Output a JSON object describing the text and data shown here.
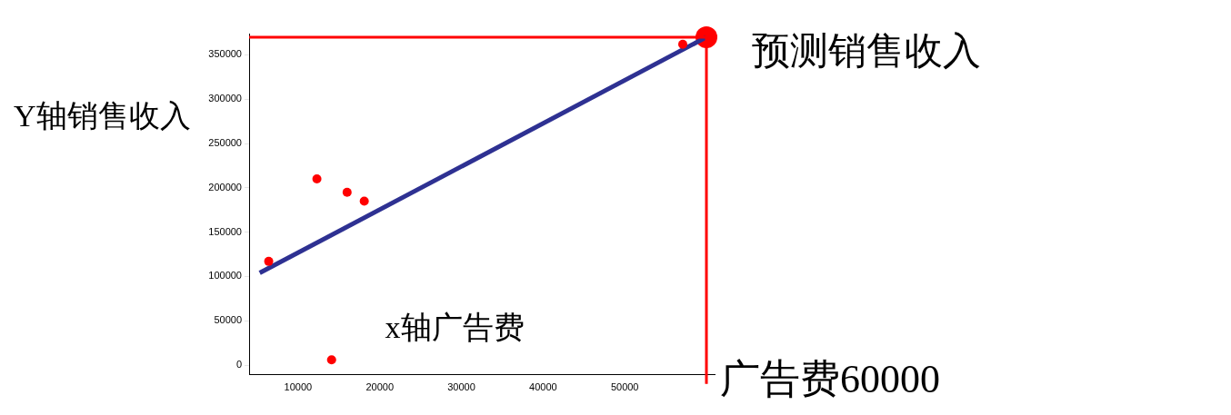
{
  "chart_data": {
    "type": "scatter",
    "xlabel": "x轴广告费",
    "ylabel": "Y轴销售收入",
    "xlim": [
      4000,
      61000
    ],
    "ylim": [
      -11000,
      374000
    ],
    "xticks": [
      10000,
      20000,
      30000,
      40000,
      50000
    ],
    "yticks": [
      0,
      50000,
      100000,
      150000,
      200000,
      250000,
      300000,
      350000
    ],
    "grid": false,
    "legend": false,
    "series": [
      {
        "color": "#ff0000",
        "marker": "circle",
        "x": [
          6400,
          12300,
          16000,
          18100,
          14100,
          57100
        ],
        "values": [
          117000,
          210000,
          195000,
          185000,
          6000,
          362000
        ]
      },
      {
        "type": "line",
        "marker": "none",
        "color": "#2e3192",
        "x": [
          5300,
          60000
        ],
        "values": [
          104000,
          370000
        ]
      },
      {
        "color": "#ff0000",
        "marker": "circle",
        "x": [
          60000
        ],
        "values": [
          370000
        ]
      }
    ],
    "ref_lines": [
      {
        "axis": "y",
        "value": 370000,
        "color": "#ff0000"
      },
      {
        "axis": "x",
        "value": 60000,
        "label": "广告费60000",
        "color": "#ff0000"
      }
    ],
    "annotations": [
      {
        "text": "预测销售收入",
        "x": 60000,
        "y": 370000
      }
    ]
  }
}
